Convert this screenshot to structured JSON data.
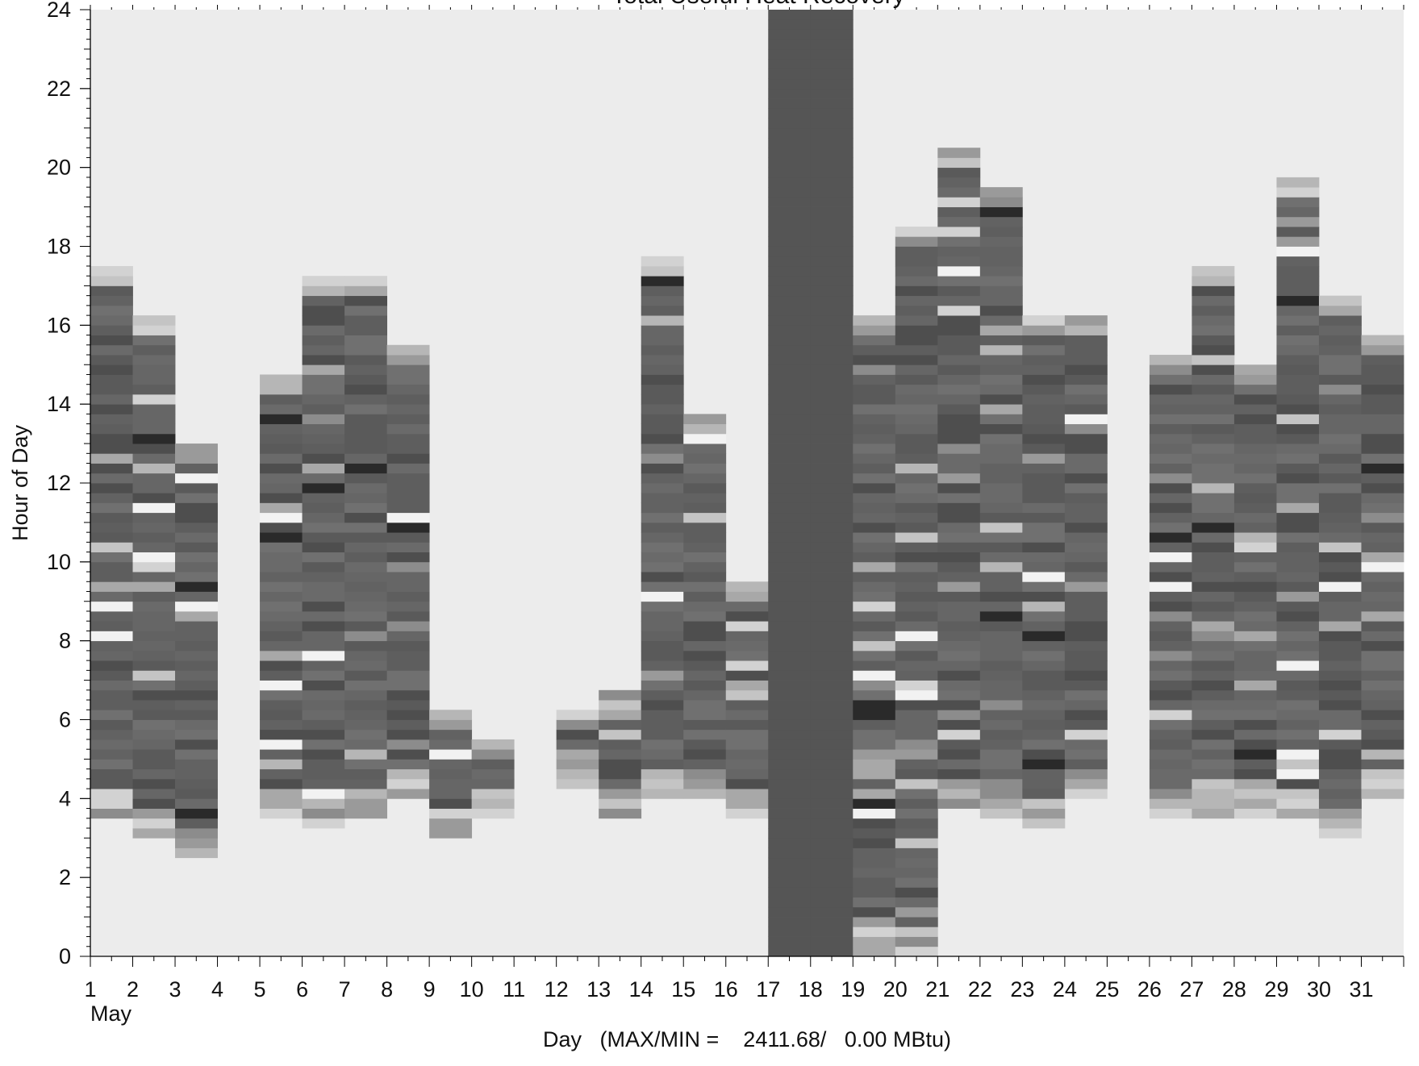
{
  "chart_data": {
    "type": "heatmap",
    "title": "Total Useful Heat Recovery",
    "xlabel": "Day   (MAX/MIN =    2411.68/   0.00 MBtu)",
    "ylabel": "Hour of Day",
    "month_label": "May",
    "x_ticks": [
      "1",
      "2",
      "3",
      "4",
      "5",
      "6",
      "7",
      "8",
      "9",
      "10",
      "11",
      "12",
      "13",
      "14",
      "15",
      "16",
      "17",
      "18",
      "19",
      "20",
      "21",
      "22",
      "23",
      "24",
      "25",
      "26",
      "27",
      "28",
      "29",
      "30",
      "31"
    ],
    "y_ticks": [
      "0",
      "2",
      "4",
      "6",
      "8",
      "10",
      "12",
      "14",
      "16",
      "18",
      "20",
      "22",
      "24"
    ],
    "xlim": [
      1,
      32
    ],
    "ylim": [
      0,
      24
    ],
    "max_value": 2411.68,
    "min_value": 0.0,
    "units": "MBtu",
    "colors": {
      "background": "#ececec",
      "low": "#ececec",
      "high": "#1a1a1a",
      "saturated": "#555555"
    },
    "days": [
      {
        "day": 1,
        "start": 3.5,
        "end": 17.5
      },
      {
        "day": 2,
        "start": 3.0,
        "end": 16.25
      },
      {
        "day": 3,
        "start": 2.5,
        "end": 13.0
      },
      {
        "day": 4,
        "start": null,
        "end": null
      },
      {
        "day": 5,
        "start": 3.5,
        "end": 14.75
      },
      {
        "day": 6,
        "start": 3.25,
        "end": 17.25
      },
      {
        "day": 7,
        "start": 3.5,
        "end": 17.25
      },
      {
        "day": 8,
        "start": 4.0,
        "end": 15.5
      },
      {
        "day": 9,
        "start": 3.0,
        "end": 6.25
      },
      {
        "day": 10,
        "start": 3.5,
        "end": 5.5
      },
      {
        "day": 11,
        "start": null,
        "end": null
      },
      {
        "day": 12,
        "start": 4.25,
        "end": 6.25
      },
      {
        "day": 13,
        "start": 3.5,
        "end": 6.75
      },
      {
        "day": 14,
        "start": 4.0,
        "end": 17.75
      },
      {
        "day": 15,
        "start": 4.0,
        "end": 13.75
      },
      {
        "day": 16,
        "start": 3.5,
        "end": 9.5
      },
      {
        "day": 17,
        "start": 0.0,
        "end": 24.0
      },
      {
        "day": 18,
        "start": 0.0,
        "end": 24.0
      },
      {
        "day": 19,
        "start": 0.0,
        "end": 16.25
      },
      {
        "day": 20,
        "start": 0.0,
        "end": 18.5
      },
      {
        "day": 21,
        "start": 3.75,
        "end": 20.5
      },
      {
        "day": 22,
        "start": 3.5,
        "end": 19.5
      },
      {
        "day": 23,
        "start": 3.25,
        "end": 16.25
      },
      {
        "day": 24,
        "start": 4.0,
        "end": 16.25
      },
      {
        "day": 25,
        "start": null,
        "end": null
      },
      {
        "day": 26,
        "start": 3.5,
        "end": 15.25
      },
      {
        "day": 27,
        "start": 3.5,
        "end": 17.5
      },
      {
        "day": 28,
        "start": 3.5,
        "end": 15.0
      },
      {
        "day": 29,
        "start": 3.5,
        "end": 19.75
      },
      {
        "day": 30,
        "start": 3.0,
        "end": 16.75
      },
      {
        "day": 31,
        "start": 4.0,
        "end": 15.75
      }
    ]
  }
}
